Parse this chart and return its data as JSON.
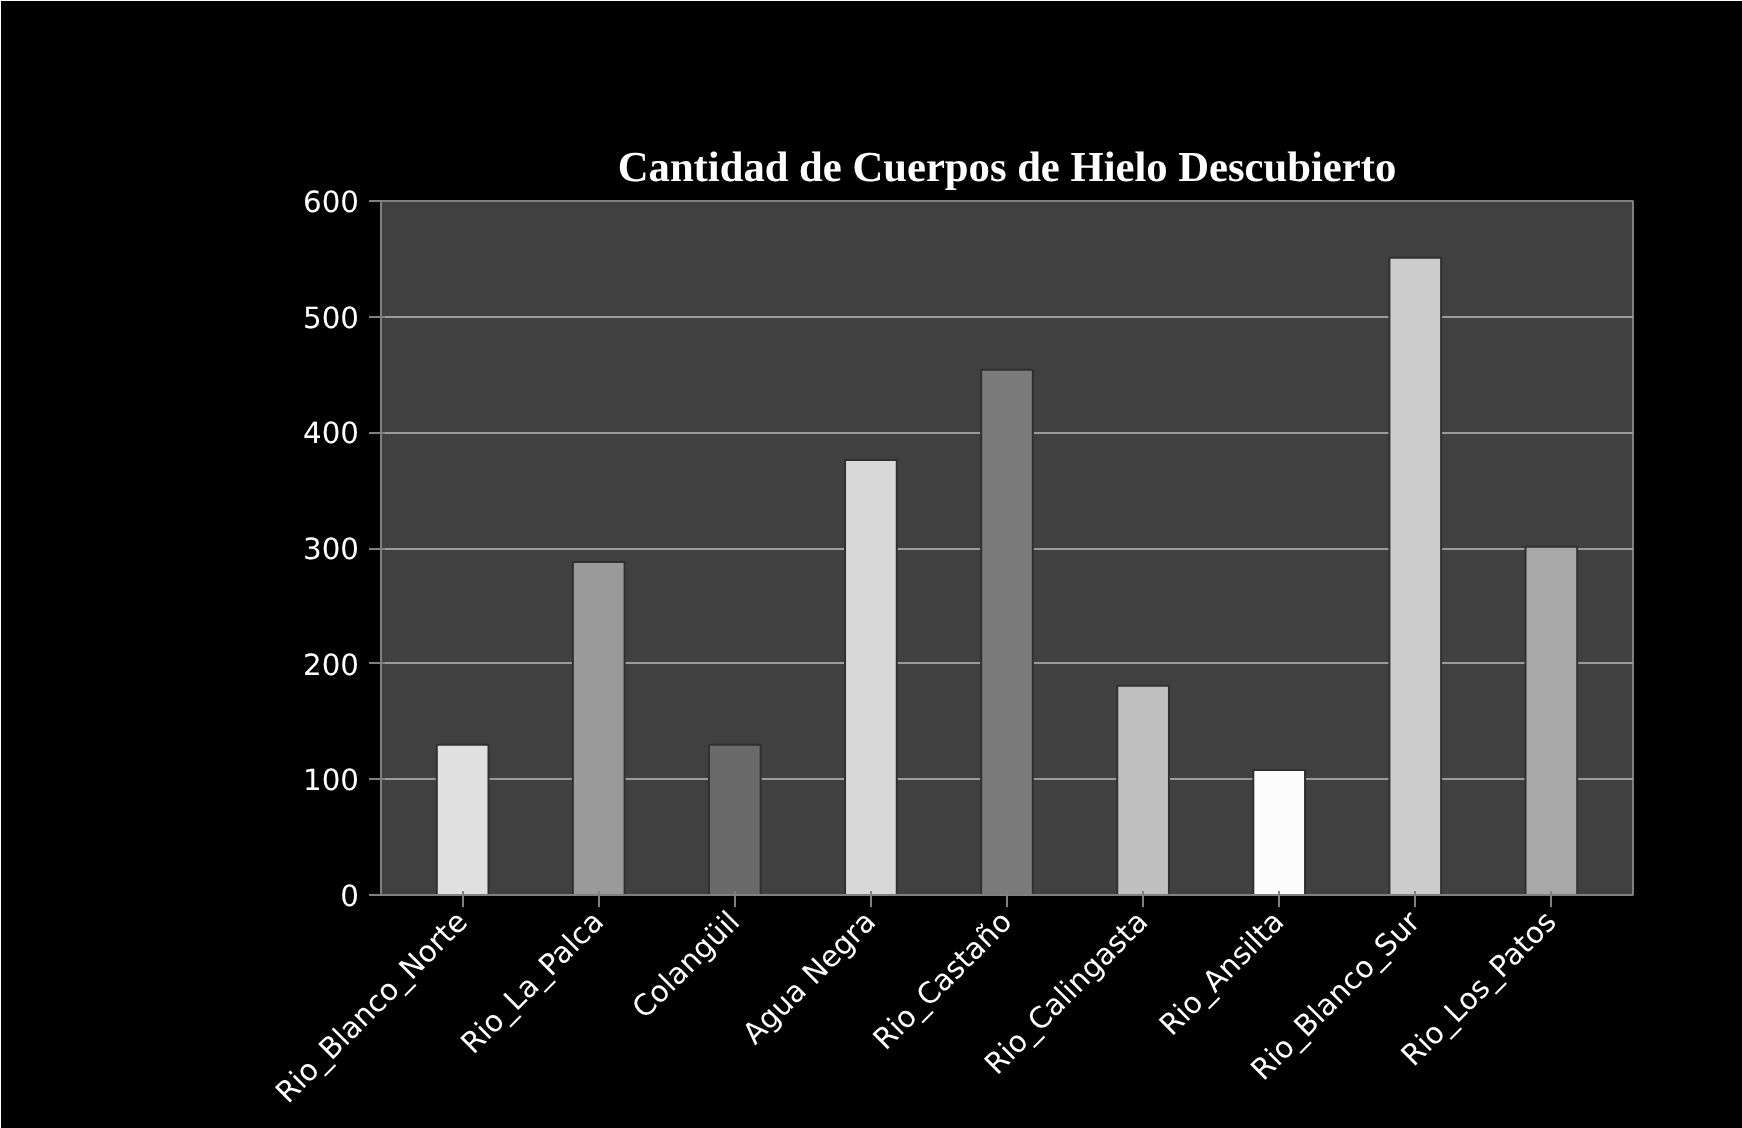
{
  "chart_data": {
    "type": "bar",
    "title": "Cantidad de Cuerpos de Hielo Descubierto",
    "categories": [
      "Rio_Blanco_Norte",
      "Rio_La_Palca",
      "Colangüil",
      "Agua Negra",
      "Rio_Castaño",
      "Rio_Calingasta",
      "Rio_Ansilta",
      "Rio_Blanco_Sur",
      "Rio_Los_Patos"
    ],
    "values": [
      130,
      288,
      130,
      376,
      454,
      181,
      108,
      551,
      301
    ],
    "colors": [
      "#e0e0e0",
      "#9a9a9a",
      "#6a6a6a",
      "#d8d8d8",
      "#7a7a7a",
      "#c0c0c0",
      "#fcfcfc",
      "#cccccc",
      "#a8a8a8"
    ],
    "ylim": [
      0,
      600
    ],
    "yticks": [
      0,
      100,
      200,
      300,
      400,
      500,
      600
    ],
    "grid": "y"
  }
}
